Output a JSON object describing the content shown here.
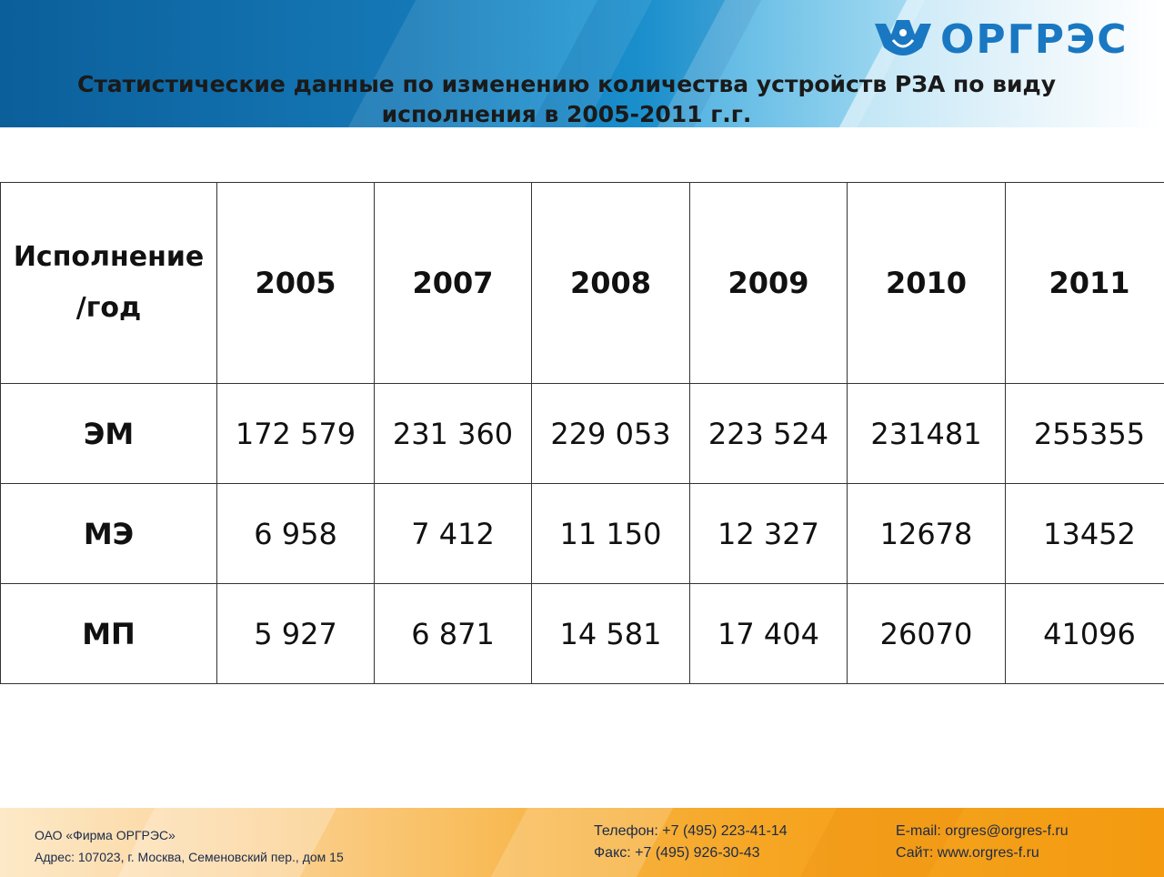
{
  "header": {
    "logo_text": "ОРГРЭС",
    "logo_icon": "crown-icon",
    "title_line1": "Статистические данные по изменению количества устройств РЗА по виду",
    "title_line2": "исполнения в 2005-2011 г.г."
  },
  "table": {
    "header": {
      "col0_line1": "Исполнение",
      "col0_line2": "/год",
      "years": [
        "2005",
        "2007",
        "2008",
        "2009",
        "2010",
        "2011"
      ]
    },
    "rows": [
      {
        "label": "ЭМ",
        "values": [
          "172 579",
          "231 360",
          "229 053",
          "223 524",
          "231481",
          "255355"
        ]
      },
      {
        "label": "МЭ",
        "values": [
          "6 958",
          "7 412",
          "11 150",
          "12 327",
          "12678",
          "13452"
        ]
      },
      {
        "label": "МП",
        "values": [
          "5 927",
          "6 871",
          "14 581",
          "17 404",
          "26070",
          "41096"
        ]
      }
    ]
  },
  "footer": {
    "company": "ОАО «Фирма ОРГРЭС»",
    "address": "Адрес: 107023, г. Москва, Семеновский пер., дом 15",
    "phone": "Телефон: +7 (495) 223-41-14",
    "fax": "Факс: +7 (495) 926-30-43",
    "email": "E-mail: orgres@orgres-f.ru",
    "site": "Сайт: www.orgres-f.ru"
  },
  "colors": {
    "brand_blue": "#1a78c2",
    "footer_orange": "#f6a623"
  }
}
